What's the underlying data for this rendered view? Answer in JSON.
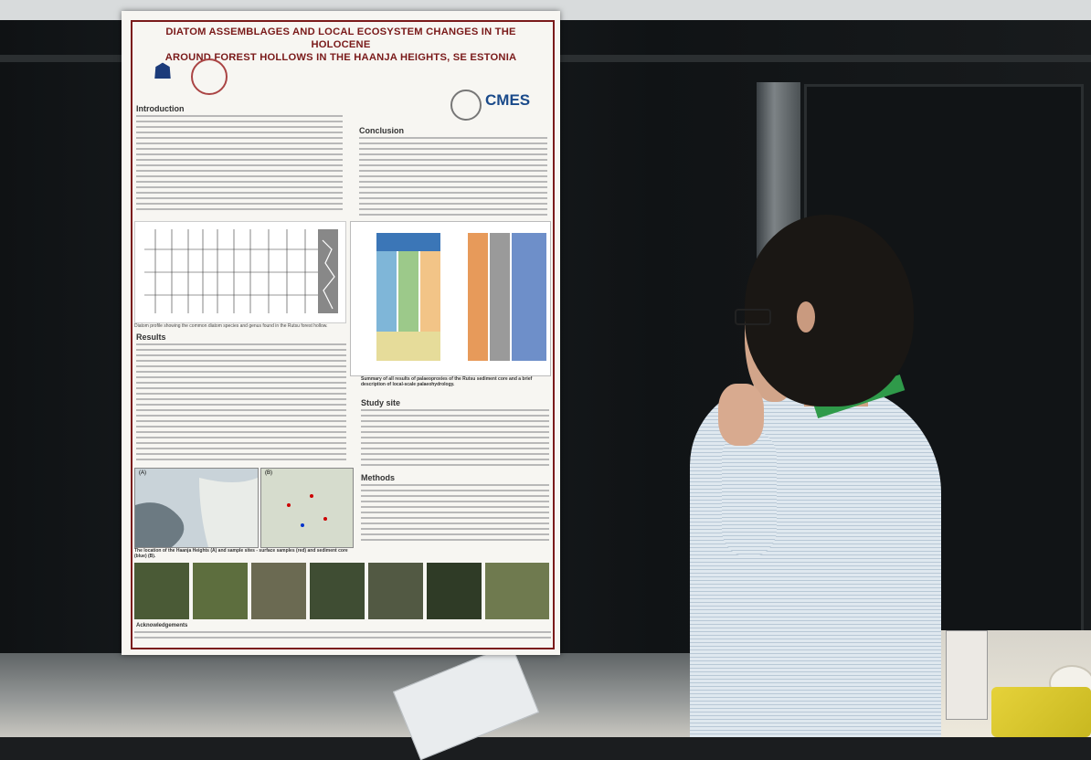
{
  "poster": {
    "title_line1": "DIATOM ASSEMBLAGES AND LOCAL ECOSYSTEM CHANGES IN THE HOLOCENE",
    "title_line2": "AROUND FOREST HOLLOWS IN THE HAANJA HEIGHTS, SE ESTONIA",
    "logo_text": "CMES",
    "sections": {
      "introduction": "Introduction",
      "conclusion": "Conclusion",
      "results": "Results",
      "study_site": "Study site",
      "methods": "Methods",
      "acknowledgements": "Acknowledgements"
    },
    "captions": {
      "diatom_profile": "Diatom profile showing the common diatom species and genus found in the Rutsu forest hollow.",
      "summary_table": "Summary of all results of palaeoproxies of the Rutsu sediment core and a brief description of local-scale palaeohydrology.",
      "maps": "The location of the Haanja Heights (A) and sample sites - surface samples (red) and sediment core (blue) (B).",
      "map_a_label": "(A)",
      "map_b_label": "(B)"
    }
  },
  "colors": {
    "poster_title": "#7a1a1a",
    "poster_bg": "#f7f6f2",
    "lanyard": "#2f9a4a",
    "wall": "#1b1d1f"
  }
}
